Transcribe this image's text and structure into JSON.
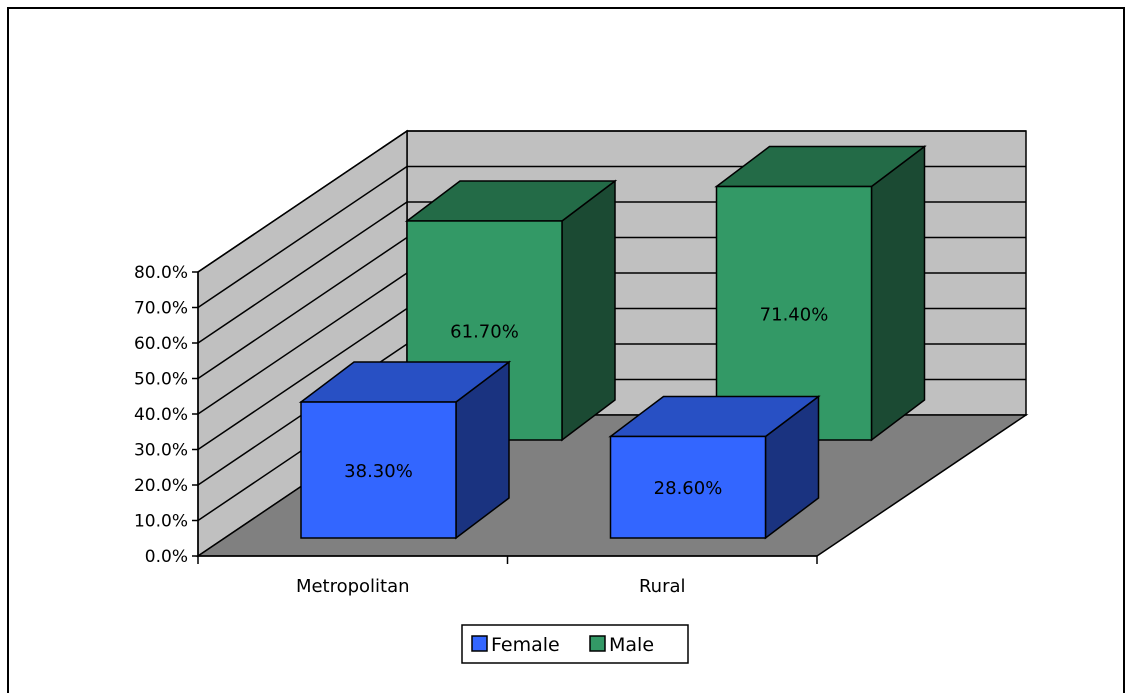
{
  "chart_data": {
    "type": "bar",
    "title": "",
    "xlabel": "",
    "ylabel": "",
    "categories": [
      "Metropolitan",
      "Rural"
    ],
    "series": [
      {
        "name": "Female",
        "values": [
          38.3,
          28.6
        ],
        "labels": [
          "38.30%",
          "28.60%"
        ],
        "color": "#3366ff"
      },
      {
        "name": "Male",
        "values": [
          61.7,
          71.4
        ],
        "labels": [
          "61.70%",
          "71.40%"
        ],
        "color": "#339966"
      }
    ],
    "ylim": [
      0,
      80
    ],
    "y_ticks": [
      "0.0%",
      "10.0%",
      "20.0%",
      "30.0%",
      "40.0%",
      "50.0%",
      "60.0%",
      "70.0%",
      "80.0%"
    ],
    "grid": true,
    "legend": "bottom",
    "three_d": true
  }
}
